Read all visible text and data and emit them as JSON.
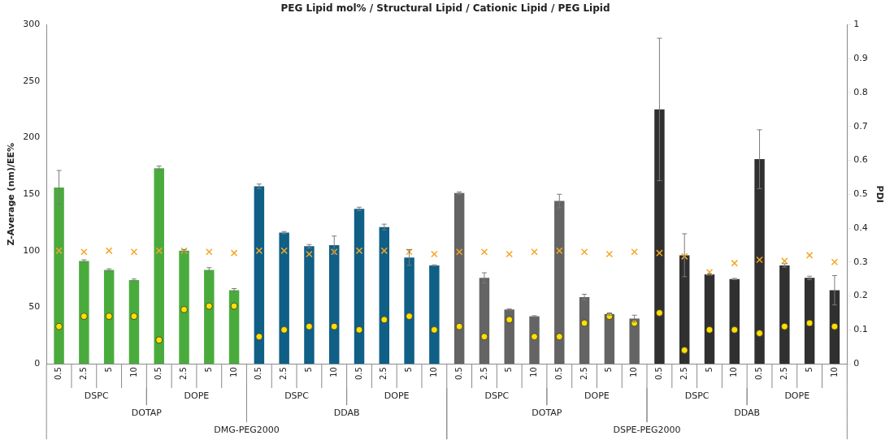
{
  "chart_data": {
    "type": "bar",
    "title": "PEG Lipid mol% / Structural Lipid / Cationic Lipid / PEG Lipid",
    "ylabel": "Z-Average (nm)/EE%",
    "y2label": "PDI",
    "categories": [
      "0.5",
      "2.5",
      "5",
      "10",
      "0.5",
      "2.5",
      "5",
      "10",
      "0.5",
      "2.5",
      "5",
      "10",
      "0.5",
      "2.5",
      "5",
      "10",
      "0.5",
      "2.5",
      "5",
      "10",
      "0.5",
      "2.5",
      "5",
      "10",
      "0.5",
      "2.5",
      "5",
      "10",
      "0.5",
      "2.5",
      "5",
      "10"
    ],
    "annotations": [
      "DSPC",
      "DOPE",
      "DSPC",
      "DOPE",
      "DSPC",
      "DOPE",
      "DSPC",
      "DOPE",
      "DOTAP",
      "DDAB",
      "DOTAP",
      "DDAB",
      "DMG-PEG2000",
      "DSPE-PEG2000"
    ],
    "series": [
      {
        "colors": [
          "#4aab3d",
          "#4aab3d",
          "#4aab3d",
          "#4aab3d",
          "#4aab3d",
          "#4aab3d",
          "#4aab3d",
          "#4aab3d",
          "#0f5f86",
          "#0f5f86",
          "#0f5f86",
          "#0f5f86",
          "#0f5f86",
          "#0f5f86",
          "#0f5f86",
          "#0f5f86",
          "#646464",
          "#646464",
          "#646464",
          "#646464",
          "#646464",
          "#646464",
          "#646464",
          "#646464",
          "#303030",
          "#303030",
          "#303030",
          "#303030",
          "#303030",
          "#303030",
          "#303030",
          "#303030"
        ],
        "values": [
          156,
          91,
          83,
          74,
          173,
          100,
          83,
          65,
          157,
          116,
          104,
          105,
          137,
          121,
          94,
          87,
          151,
          76,
          48,
          42,
          144,
          59,
          44,
          40,
          225,
          96,
          79,
          75,
          181,
          87,
          76,
          65
        ],
        "errors": [
          15,
          1,
          1,
          1,
          2,
          1,
          2,
          1.5,
          2,
          1,
          1.5,
          8,
          1.5,
          2.5,
          7,
          0.5,
          1,
          4.5,
          0.5,
          0.5,
          6,
          2.5,
          1,
          3,
          63,
          19,
          0.5,
          0.5,
          26,
          1.5,
          1.5,
          13
        ]
      },
      {
        "type": "scatter",
        "color": "#f5a623",
        "marker": "cross",
        "values": [
          100,
          99,
          100,
          99,
          100,
          100,
          99,
          98,
          100,
          100,
          97,
          99,
          100,
          100,
          99,
          97,
          99,
          99,
          97,
          99,
          100,
          99,
          97,
          99,
          98,
          95,
          81,
          89,
          92,
          91,
          96,
          90
        ]
      },
      {
        "type": "scatter",
        "color": "#ffe000",
        "marker": "circle",
        "axis": "y2",
        "values": [
          0.11,
          0.14,
          0.14,
          0.14,
          0.07,
          0.16,
          0.17,
          0.17,
          0.08,
          0.1,
          0.11,
          0.11,
          0.1,
          0.13,
          0.14,
          0.1,
          0.11,
          0.08,
          0.13,
          0.08,
          0.08,
          0.12,
          0.14,
          0.12,
          0.15,
          0.04,
          0.1,
          0.1,
          0.09,
          0.11,
          0.12,
          0.11
        ]
      }
    ],
    "ylim": [
      0,
      300
    ],
    "yticks": [
      0,
      50,
      100,
      150,
      200,
      250,
      300
    ],
    "y2lim": [
      0,
      1
    ],
    "y2ticks": [
      0,
      0.1,
      0.2,
      0.3,
      0.4,
      0.5,
      0.6,
      0.7,
      0.8,
      0.9,
      1
    ],
    "grid": false,
    "legend": false
  }
}
